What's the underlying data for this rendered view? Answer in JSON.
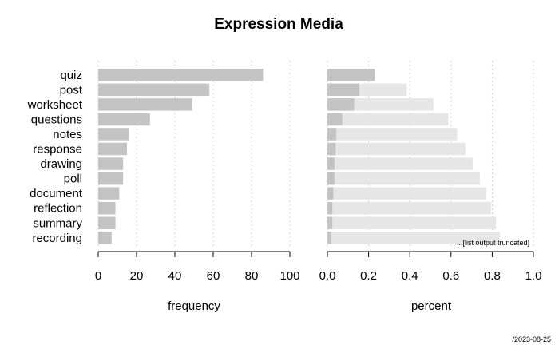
{
  "chart_data": {
    "type": "bar",
    "title": "Expression Media",
    "categories": [
      "quiz",
      "post",
      "worksheet",
      "questions",
      "notes",
      "response",
      "drawing",
      "poll",
      "document",
      "reflection",
      "summary",
      "recording"
    ],
    "panels": [
      {
        "name": "frequency",
        "xlabel": "frequency",
        "xlim": [
          0,
          100
        ],
        "ticks": [
          "0",
          "20",
          "40",
          "60",
          "80",
          "100"
        ],
        "tick_values": [
          0,
          20,
          40,
          60,
          80,
          100
        ],
        "series": [
          {
            "values": [
              86,
              58,
              49,
              27,
              16,
              15,
              13,
              13,
              11,
              9,
              9,
              7
            ]
          }
        ]
      },
      {
        "name": "percent",
        "xlabel": "percent",
        "xlim": [
          0,
          1
        ],
        "ticks": [
          "0.0",
          "0.2",
          "0.4",
          "0.6",
          "0.8",
          "1.0"
        ],
        "tick_values": [
          0,
          0.2,
          0.4,
          0.6,
          0.8,
          1.0
        ],
        "series": [
          {
            "role": "cumulative",
            "values": [
              0.23,
              0.385,
              0.515,
              0.587,
              0.63,
              0.67,
              0.705,
              0.74,
              0.77,
              0.795,
              0.818,
              0.836
            ]
          },
          {
            "role": "percent",
            "values": [
              0.23,
              0.155,
              0.13,
              0.072,
              0.043,
              0.04,
              0.035,
              0.035,
              0.029,
              0.024,
              0.024,
              0.019
            ]
          }
        ],
        "note": "...[list output truncated]"
      }
    ],
    "grid": true,
    "colors": {
      "bar": "#c4c4c4",
      "cumulative": "#e6e6e6",
      "grid": "#d0d0d0",
      "axis": "#000000"
    }
  },
  "footer": "/2023-08-25"
}
